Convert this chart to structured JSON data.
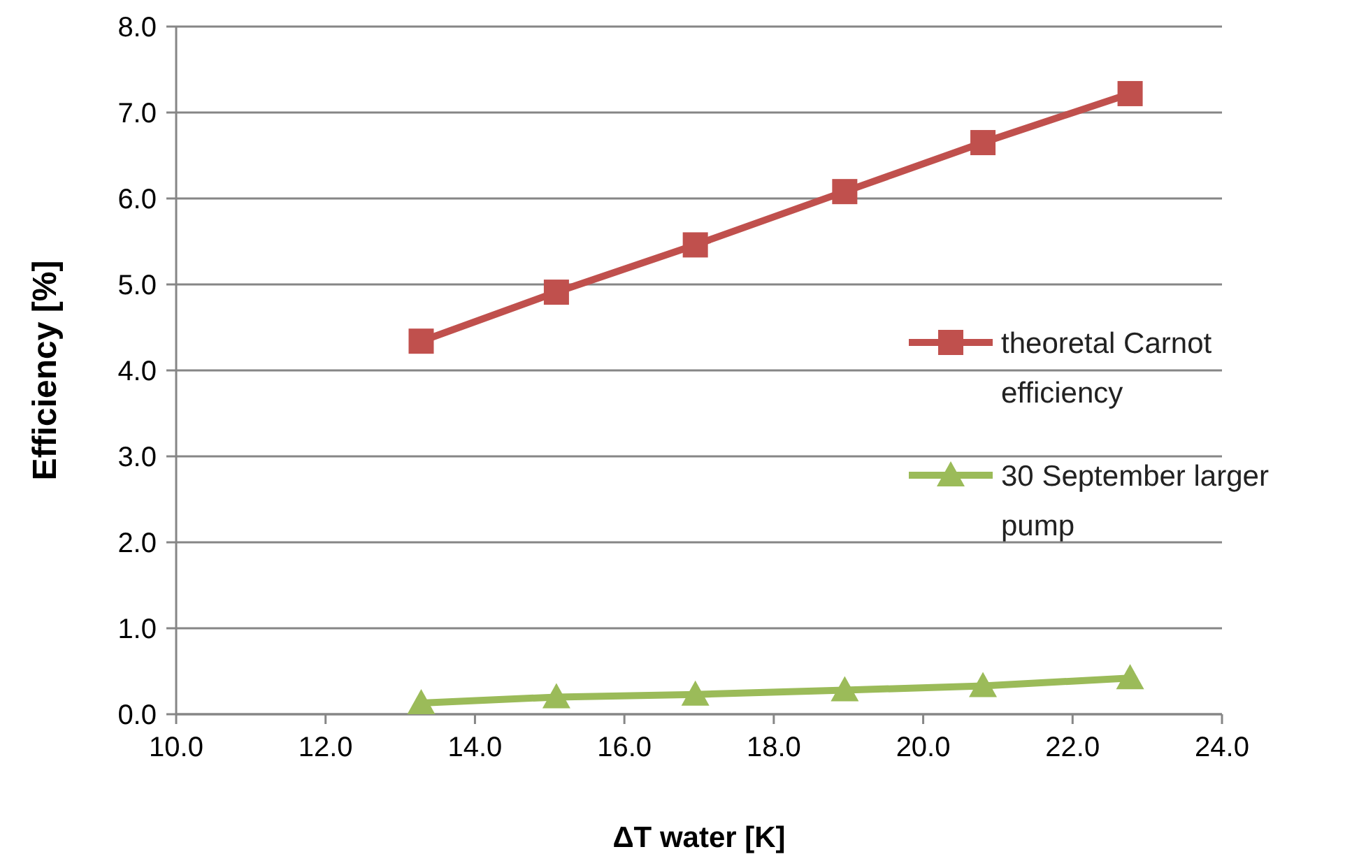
{
  "chart_data": {
    "type": "line",
    "xlabel": "ΔT water [K]",
    "ylabel": "Efficiency [%]",
    "xlim": [
      10,
      24
    ],
    "xticks": [
      {
        "value": 10,
        "label": "10.0"
      },
      {
        "value": 12,
        "label": "12.0"
      },
      {
        "value": 14,
        "label": "14.0"
      },
      {
        "value": 16,
        "label": "16.0"
      },
      {
        "value": 18,
        "label": "18.0"
      },
      {
        "value": 20,
        "label": "20.0"
      },
      {
        "value": 22,
        "label": "22.0"
      },
      {
        "value": 24,
        "label": "24.0"
      }
    ],
    "ylim": [
      0,
      8
    ],
    "yticks": [
      {
        "value": 0,
        "label": "0.0"
      },
      {
        "value": 1,
        "label": "1.0"
      },
      {
        "value": 2,
        "label": "2.0"
      },
      {
        "value": 3,
        "label": "3.0"
      },
      {
        "value": 4,
        "label": "4.0"
      },
      {
        "value": 5,
        "label": "5.0"
      },
      {
        "value": 6,
        "label": "6.0"
      },
      {
        "value": 7,
        "label": "7.0"
      },
      {
        "value": 8,
        "label": "8.0"
      }
    ],
    "grid": "y",
    "legend": "right",
    "x": [
      13.28,
      15.09,
      16.95,
      18.95,
      20.8,
      22.77
    ],
    "series": [
      {
        "name": "theoretal Carnot efficiency",
        "color": "#c0504d",
        "marker": "square",
        "values": [
          4.34,
          4.91,
          5.46,
          6.08,
          6.65,
          7.22
        ]
      },
      {
        "name": "30 September larger pump",
        "color": "#9bbb59",
        "marker": "triangle",
        "values": [
          0.13,
          0.2,
          0.23,
          0.28,
          0.33,
          0.42
        ]
      }
    ]
  }
}
